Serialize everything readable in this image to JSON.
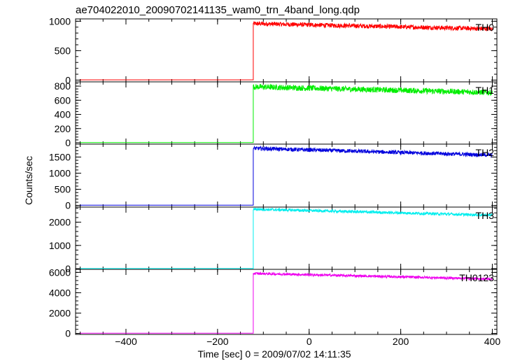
{
  "title": "ae704022010_20090702141135_wam0_trn_4band_long.qdp",
  "chart_data": {
    "type": "line",
    "title": "ae704022010_20090702141135_wam0_trn_4band_long.qdp",
    "xlabel": "Time [sec] 0 = 2009/07/02 14:11:35",
    "ylabel": "Counts/sec",
    "xlim": [
      -510,
      410
    ],
    "x_ticks": [
      -400,
      -200,
      0,
      200,
      400
    ],
    "x_tick_labels": [
      "−400",
      "−200",
      "0",
      "200",
      "400"
    ],
    "trigger_x": -122,
    "data_start_x": -500,
    "data_end_x": 400,
    "grid": false,
    "legend": "none",
    "panels": [
      {
        "name": "TH0",
        "color": "#ff0000",
        "ylim": [
          -30,
          1040
        ],
        "yticks": [
          0,
          500,
          1000
        ],
        "ytick_labels": [
          "0",
          "500",
          "1000"
        ],
        "pre_level": 5,
        "peak_level": 960,
        "end_level": 870,
        "noise": 38
      },
      {
        "name": "TH1",
        "color": "#00ee00",
        "ylim": [
          -20,
          860
        ],
        "yticks": [
          0,
          200,
          400,
          600,
          800
        ],
        "ytick_labels": [
          "0",
          "200",
          "400",
          "600",
          "800"
        ],
        "pre_level": 3,
        "peak_level": 790,
        "end_level": 710,
        "noise": 40
      },
      {
        "name": "TH2",
        "color": "#0000dd",
        "ylim": [
          -50,
          1900
        ],
        "yticks": [
          0,
          500,
          1000,
          1500
        ],
        "ytick_labels": [
          "0",
          "500",
          "1000",
          "1500"
        ],
        "pre_level": 10,
        "peak_level": 1770,
        "end_level": 1560,
        "noise": 60
      },
      {
        "name": "TH3",
        "color": "#00eeee",
        "ylim": [
          -30,
          2650
        ],
        "yticks": [
          0,
          1000,
          2000
        ],
        "ytick_labels": [
          "0",
          "1000",
          "2000"
        ],
        "pre_level": 10,
        "peak_level": 2560,
        "end_level": 2300,
        "noise": 60
      },
      {
        "name": "TH0123",
        "color": "#ee00ee",
        "ylim": [
          -100,
          6300
        ],
        "yticks": [
          0,
          2000,
          4000,
          6000
        ],
        "ytick_labels": [
          "0",
          "2000",
          "4000",
          "6000"
        ],
        "pre_level": 20,
        "peak_level": 5900,
        "end_level": 5350,
        "noise": 120
      }
    ]
  }
}
